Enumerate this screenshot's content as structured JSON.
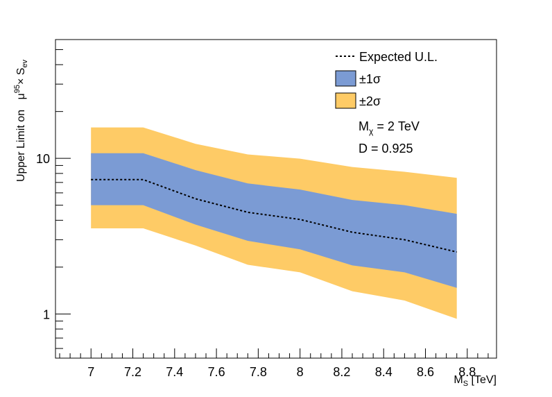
{
  "chart_data": {
    "type": "area",
    "xlabel": "M",
    "xlabel_sub": "S",
    "xlabel_unit": " [TeV]",
    "ylabel_prefix": "Upper Limit on",
    "ylabel_mu": "μ",
    "ylabel_sup": "95",
    "ylabel_times": "× S",
    "ylabel_sub": "ev",
    "xlim": [
      6.83,
      8.94
    ],
    "ylim": [
      0.52,
      58
    ],
    "y_scale": "log",
    "x_ticks": [
      "7",
      "7.2",
      "7.4",
      "7.6",
      "7.8",
      "8",
      "8.2",
      "8.4",
      "8.6",
      "8.8"
    ],
    "y_ticks": [
      "1",
      "10"
    ],
    "x": [
      7.0,
      7.25,
      7.5,
      7.75,
      8.0,
      8.25,
      8.5,
      8.75
    ],
    "series": [
      {
        "name": "Expected U.L.",
        "style": "dotted-line",
        "color": "#000000",
        "values": [
          7.3,
          7.3,
          5.5,
          4.5,
          4.05,
          3.35,
          3.0,
          2.5
        ]
      },
      {
        "name": "±1σ",
        "style": "band",
        "color": "#7b9bd4",
        "lower": [
          5.0,
          5.0,
          3.75,
          2.95,
          2.6,
          2.05,
          1.85,
          1.47
        ],
        "upper": [
          10.8,
          10.8,
          8.4,
          6.9,
          6.3,
          5.4,
          5.0,
          4.4
        ]
      },
      {
        "name": "±2σ",
        "style": "band",
        "color": "#fecb66",
        "lower": [
          3.55,
          3.55,
          2.75,
          2.07,
          1.85,
          1.4,
          1.22,
          0.93
        ],
        "upper": [
          15.8,
          15.8,
          12.4,
          10.6,
          9.95,
          8.8,
          8.2,
          7.5
        ]
      }
    ],
    "legend": {
      "position": "top-right",
      "entries": [
        "Expected U.L.",
        "±1σ",
        "±2σ"
      ]
    },
    "annotations": {
      "mchi_label": "M",
      "mchi_sub": "χ",
      "mchi_value": " = 2 TeV",
      "d_label": "D = 0.925"
    },
    "grid": false
  }
}
